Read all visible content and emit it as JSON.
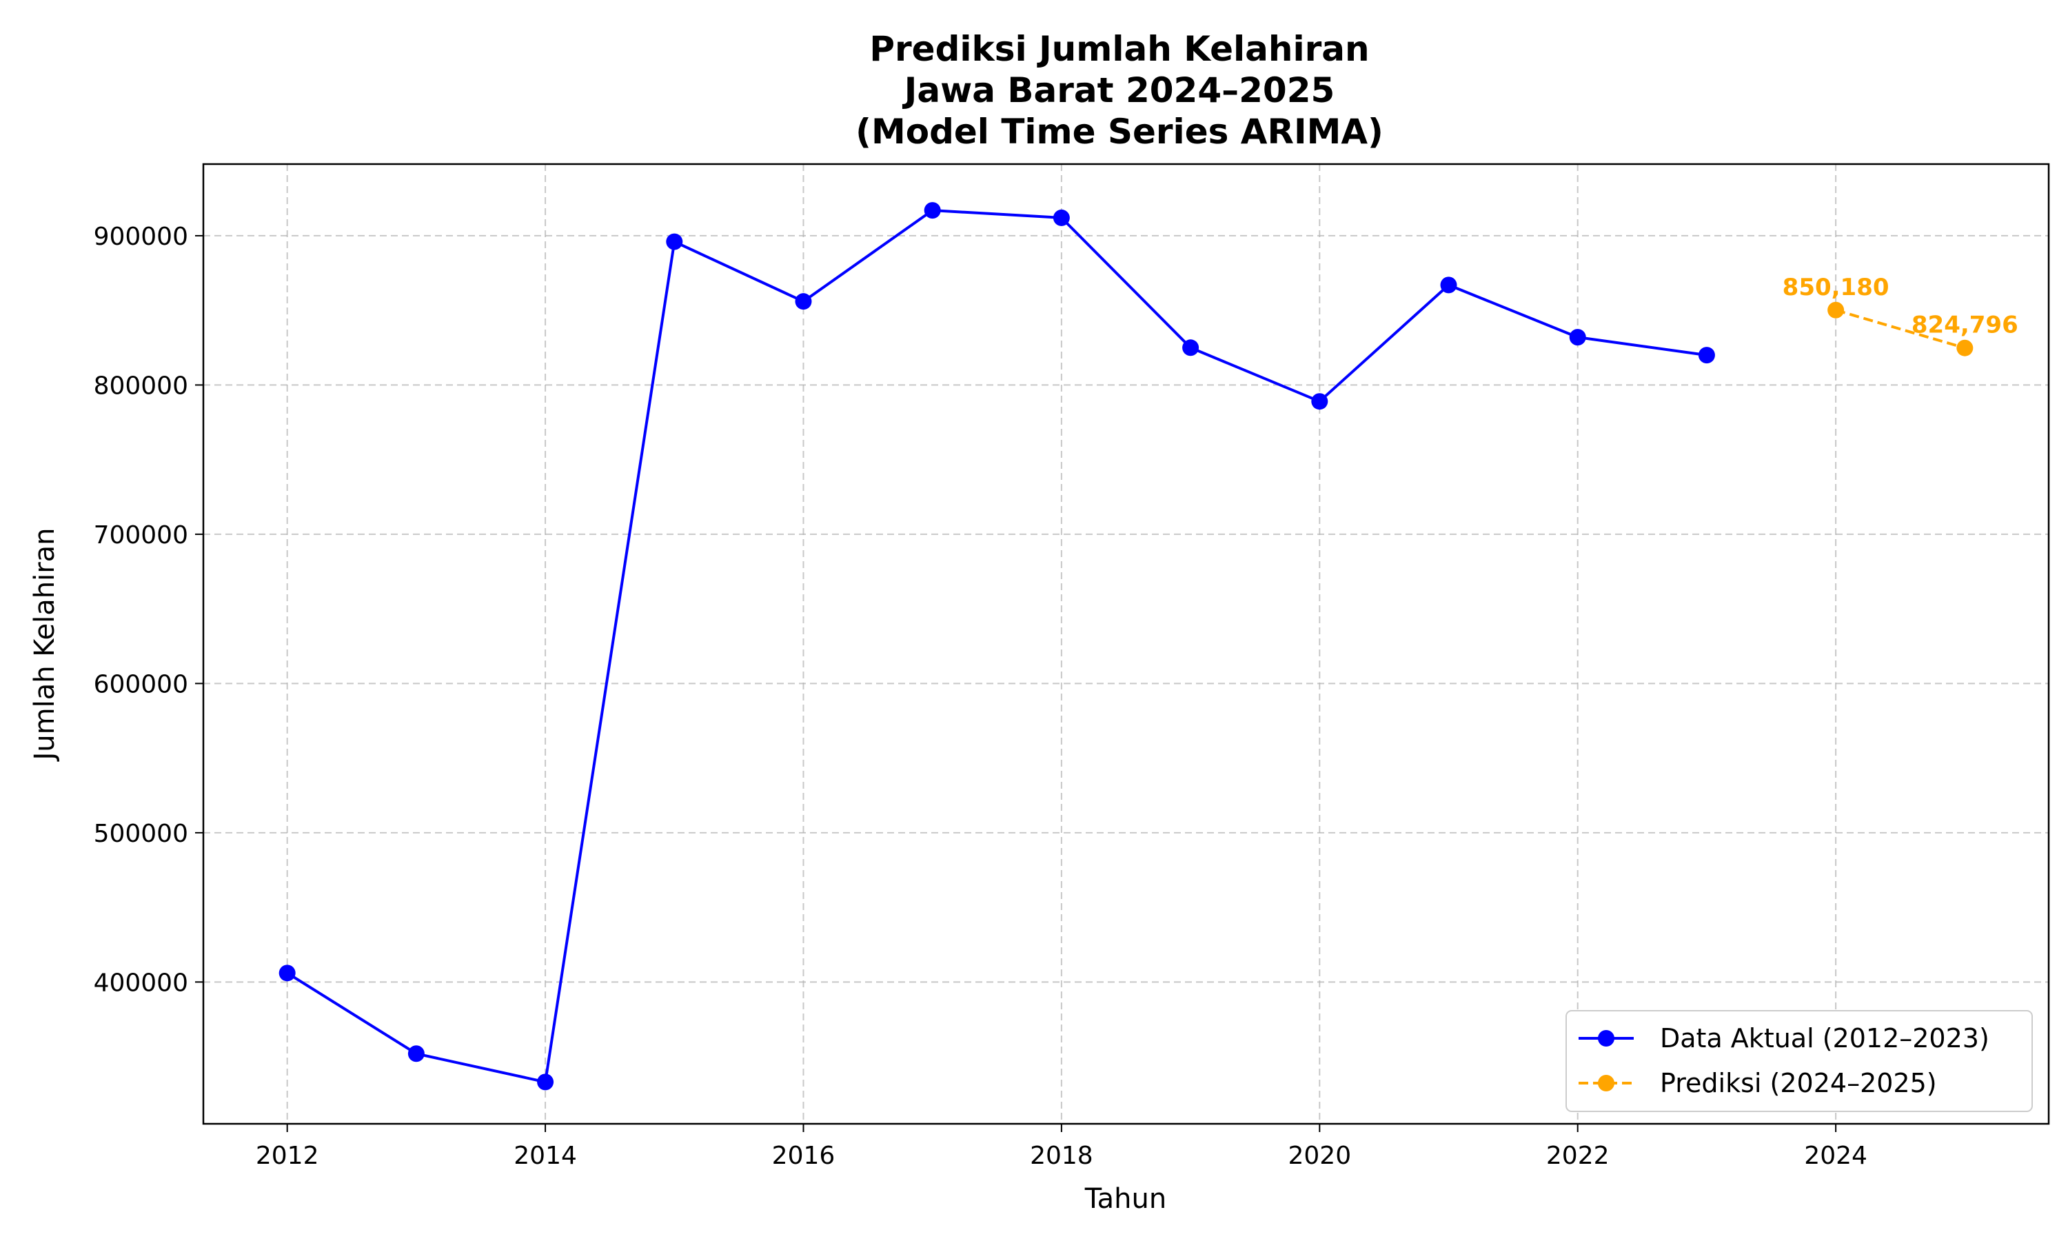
{
  "chart_data": {
    "type": "line",
    "title_lines": [
      "Prediksi Jumlah Kelahiran",
      "Jawa Barat 2024–2025",
      "(Model Time Series ARIMA)"
    ],
    "xlabel": "Tahun",
    "ylabel": "Jumlah Kelahiran",
    "xlim": [
      2011.35,
      2025.65
    ],
    "ylim": [
      305000,
      948000
    ],
    "x_ticks": [
      2012,
      2014,
      2016,
      2018,
      2020,
      2022,
      2024
    ],
    "y_ticks": [
      400000,
      500000,
      600000,
      700000,
      800000,
      900000
    ],
    "grid": true,
    "legend_position": "lower-right",
    "series": [
      {
        "name": "Data Aktual (2012–2023)",
        "color": "#0000ff",
        "line_style": "solid",
        "marker": "circle",
        "x": [
          2012,
          2013,
          2014,
          2015,
          2016,
          2017,
          2018,
          2019,
          2020,
          2021,
          2022,
          2023
        ],
        "y": [
          406000,
          352000,
          333000,
          896000,
          856000,
          917000,
          912000,
          825000,
          789000,
          867000,
          832000,
          820000
        ]
      },
      {
        "name": "Prediksi (2024–2025)",
        "color": "#ffa500",
        "line_style": "dashed",
        "marker": "circle",
        "x": [
          2024,
          2025
        ],
        "y": [
          850180,
          824796
        ],
        "point_labels": [
          "850,180",
          "824,796"
        ]
      }
    ]
  }
}
